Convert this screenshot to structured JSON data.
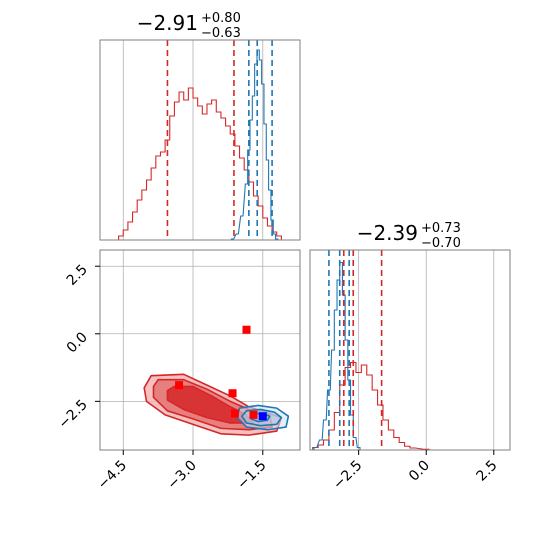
{
  "chart_data": {
    "type": "corner",
    "parameters": [
      {
        "title": {
          "median": "−2.91",
          "upper": "+0.80",
          "lower": "−0.63"
        },
        "range": [
          -5.0,
          -0.7
        ],
        "ticks": [
          -4.5,
          -3.0,
          -1.5
        ],
        "tick_labels": [
          "−4.5",
          "−3.0",
          "−1.5"
        ],
        "quantile_lines": {
          "red": [
            -3.55,
            -2.12,
            -0.5
          ],
          "blue": [
            -1.8,
            -1.62,
            -1.3
          ]
        }
      },
      {
        "title": {
          "median": "−2.39",
          "upper": "+0.73",
          "lower": "−0.70"
        },
        "range": [
          -4.3,
          3.1
        ],
        "ticks": [
          -2.5,
          0.0,
          2.5
        ],
        "tick_labels": [
          "−2.5",
          "0.0",
          "2.5"
        ],
        "quantile_lines": {
          "red": [
            -3.05,
            -2.7,
            -1.65
          ],
          "blue": [
            -3.6,
            -3.2,
            -2.85
          ]
        }
      }
    ],
    "joint_y_ticks": [
      -2.5,
      0.0,
      2.5
    ],
    "joint_y_tick_labels": [
      "−2.5",
      "0.0",
      "2.5"
    ],
    "series": [
      {
        "color": "#d62728",
        "hist_x": [
          [
            -4.55,
            0.2
          ],
          [
            -4.45,
            0.5
          ],
          [
            -4.35,
            0.9
          ],
          [
            -4.25,
            1.4
          ],
          [
            -4.15,
            2.0
          ],
          [
            -4.05,
            2.5
          ],
          [
            -3.95,
            3.0
          ],
          [
            -3.85,
            3.6
          ],
          [
            -3.75,
            4.2
          ],
          [
            -3.65,
            4.4
          ],
          [
            -3.55,
            5.0
          ],
          [
            -3.45,
            6.2
          ],
          [
            -3.35,
            6.9
          ],
          [
            -3.25,
            7.4
          ],
          [
            -3.15,
            7.0
          ],
          [
            -3.05,
            7.6
          ],
          [
            -2.95,
            7.1
          ],
          [
            -2.85,
            6.7
          ],
          [
            -2.75,
            6.3
          ],
          [
            -2.65,
            6.8
          ],
          [
            -2.55,
            7.0
          ],
          [
            -2.45,
            6.4
          ],
          [
            -2.35,
            6.1
          ],
          [
            -2.25,
            5.7
          ],
          [
            -2.15,
            5.3
          ],
          [
            -2.05,
            4.7
          ],
          [
            -1.95,
            4.1
          ],
          [
            -1.85,
            3.5
          ],
          [
            -1.75,
            2.9
          ],
          [
            -1.65,
            2.2
          ],
          [
            -1.55,
            1.7
          ],
          [
            -1.45,
            1.1
          ],
          [
            -1.35,
            0.7
          ],
          [
            -1.25,
            0.4
          ],
          [
            -1.15,
            0.2
          ]
        ],
        "hist_y": [
          [
            -4.1,
            0.1
          ],
          [
            -3.9,
            0.2
          ],
          [
            -3.7,
            0.4
          ],
          [
            -3.5,
            0.8
          ],
          [
            -3.3,
            1.5
          ],
          [
            -3.1,
            2.6
          ],
          [
            -2.9,
            3.3
          ],
          [
            -2.7,
            3.5
          ],
          [
            -2.5,
            3.1
          ],
          [
            -2.3,
            3.4
          ],
          [
            -2.1,
            3.0
          ],
          [
            -1.9,
            2.4
          ],
          [
            -1.7,
            1.8
          ],
          [
            -1.5,
            1.2
          ],
          [
            -1.3,
            0.8
          ],
          [
            -1.1,
            0.5
          ],
          [
            -0.9,
            0.3
          ],
          [
            -0.7,
            0.15
          ],
          [
            -0.5,
            0.08
          ],
          [
            0.0,
            0.03
          ]
        ],
        "contours": [
          [
            [
              -3.9,
              -1.55
            ],
            [
              -3.2,
              -1.5
            ],
            [
              -2.7,
              -1.9
            ],
            [
              -2.2,
              -2.3
            ],
            [
              -1.8,
              -2.7
            ],
            [
              -1.45,
              -2.9
            ],
            [
              -1.1,
              -3.1
            ],
            [
              -1.2,
              -3.6
            ],
            [
              -1.8,
              -3.75
            ],
            [
              -2.4,
              -3.7
            ],
            [
              -3.0,
              -3.35
            ],
            [
              -3.6,
              -3.0
            ],
            [
              -4.0,
              -2.5
            ],
            [
              -4.05,
              -2.0
            ]
          ],
          [
            [
              -3.75,
              -1.7
            ],
            [
              -3.2,
              -1.7
            ],
            [
              -2.7,
              -2.05
            ],
            [
              -2.2,
              -2.5
            ],
            [
              -1.8,
              -2.8
            ],
            [
              -1.35,
              -3.0
            ],
            [
              -1.3,
              -3.45
            ],
            [
              -1.8,
              -3.55
            ],
            [
              -2.4,
              -3.5
            ],
            [
              -3.0,
              -3.15
            ],
            [
              -3.55,
              -2.85
            ],
            [
              -3.85,
              -2.35
            ],
            [
              -3.85,
              -1.95
            ]
          ],
          [
            [
              -3.4,
              -1.95
            ],
            [
              -3.0,
              -1.95
            ],
            [
              -2.6,
              -2.3
            ],
            [
              -2.2,
              -2.7
            ],
            [
              -1.85,
              -3.0
            ],
            [
              -1.7,
              -3.3
            ],
            [
              -2.2,
              -3.3
            ],
            [
              -2.7,
              -3.1
            ],
            [
              -3.2,
              -2.8
            ],
            [
              -3.55,
              -2.45
            ],
            [
              -3.55,
              -2.1
            ]
          ]
        ],
        "markers": [
          [
            -3.3,
            -1.9
          ],
          [
            -2.15,
            -2.2
          ],
          [
            -2.1,
            -2.95
          ],
          [
            -1.85,
            0.15
          ],
          [
            -1.7,
            -3.0
          ]
        ]
      },
      {
        "color": "#1f77b4",
        "hist_x": [
          [
            -2.15,
            0.05
          ],
          [
            -2.05,
            0.3
          ],
          [
            -1.95,
            1.2
          ],
          [
            -1.85,
            2.8
          ],
          [
            -1.8,
            4.5
          ],
          [
            -1.75,
            6.0
          ],
          [
            -1.7,
            7.2
          ],
          [
            -1.65,
            8.8
          ],
          [
            -1.6,
            9.5
          ],
          [
            -1.55,
            9.0
          ],
          [
            -1.5,
            7.8
          ],
          [
            -1.45,
            5.8
          ],
          [
            -1.4,
            4.0
          ],
          [
            -1.35,
            2.5
          ],
          [
            -1.3,
            1.0
          ],
          [
            -1.25,
            0.3
          ],
          [
            -1.2,
            0.05
          ]
        ],
        "hist_y": [
          [
            -4.1,
            0.1
          ],
          [
            -3.9,
            0.4
          ],
          [
            -3.75,
            1.2
          ],
          [
            -3.6,
            2.4
          ],
          [
            -3.45,
            4.0
          ],
          [
            -3.35,
            5.6
          ],
          [
            -3.25,
            6.8
          ],
          [
            -3.15,
            7.5
          ],
          [
            -3.05,
            6.2
          ],
          [
            -2.95,
            4.4
          ],
          [
            -2.85,
            2.8
          ],
          [
            -2.75,
            1.4
          ],
          [
            -2.65,
            0.5
          ],
          [
            -2.5,
            0.1
          ]
        ],
        "contours": [
          [
            [
              -2.0,
              -2.75
            ],
            [
              -1.6,
              -2.65
            ],
            [
              -1.2,
              -2.75
            ],
            [
              -0.95,
              -3.05
            ],
            [
              -1.0,
              -3.45
            ],
            [
              -1.4,
              -3.55
            ],
            [
              -1.85,
              -3.45
            ],
            [
              -2.05,
              -3.1
            ]
          ],
          [
            [
              -1.85,
              -2.85
            ],
            [
              -1.55,
              -2.8
            ],
            [
              -1.25,
              -2.9
            ],
            [
              -1.1,
              -3.1
            ],
            [
              -1.2,
              -3.35
            ],
            [
              -1.55,
              -3.4
            ],
            [
              -1.85,
              -3.3
            ],
            [
              -1.95,
              -3.05
            ]
          ],
          [
            [
              -1.7,
              -2.95
            ],
            [
              -1.5,
              -2.95
            ],
            [
              -1.35,
              -3.05
            ],
            [
              -1.4,
              -3.2
            ],
            [
              -1.6,
              -3.25
            ],
            [
              -1.75,
              -3.15
            ]
          ]
        ],
        "markers": [
          [
            -1.5,
            -3.05
          ]
        ]
      }
    ]
  }
}
